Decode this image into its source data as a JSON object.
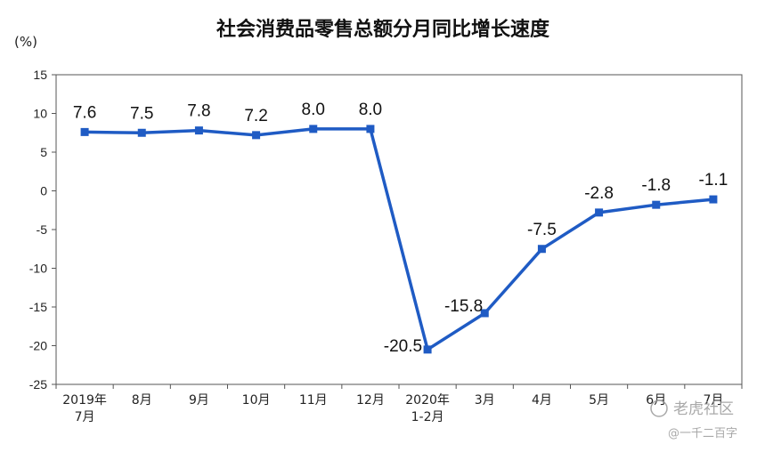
{
  "chart_data": {
    "type": "line",
    "title": "社会消费品零售总额分月同比增长速度",
    "ylabel": "(%)",
    "xlabel": "",
    "ylim": [
      -25,
      15
    ],
    "yticks": [
      15,
      10,
      5,
      0,
      -5,
      -10,
      -15,
      -20,
      -25
    ],
    "categories": [
      [
        "2019年",
        "7月"
      ],
      [
        "8月"
      ],
      [
        "9月"
      ],
      [
        "10月"
      ],
      [
        "11月"
      ],
      [
        "12月"
      ],
      [
        "2020年",
        "1-2月"
      ],
      [
        "3月"
      ],
      [
        "4月"
      ],
      [
        "5月"
      ],
      [
        "6月"
      ],
      [
        "7月"
      ]
    ],
    "values": [
      7.6,
      7.5,
      7.8,
      7.2,
      8.0,
      8.0,
      -20.5,
      -15.8,
      -7.5,
      -2.8,
      -1.8,
      -1.1
    ],
    "data_labels": [
      "7.6",
      "7.5",
      "7.8",
      "7.2",
      "8.0",
      "8.0",
      "-20.5",
      "-15.8",
      "-7.5",
      "-2.8",
      "-1.8",
      "-1.1"
    ],
    "grid": false,
    "line_color": "#1f5bc4",
    "marker": "square"
  },
  "watermark": {
    "text1": "老虎社区",
    "text2": "@一千二百字"
  }
}
